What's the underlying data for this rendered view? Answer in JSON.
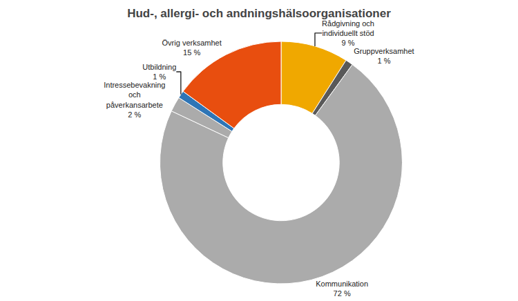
{
  "chart_data": {
    "type": "pie",
    "title": "Hud-, allergi- och andningshälsoorganisationer",
    "categories": [
      "Rådgivning och\nindividuellt stöd",
      "Gruppverksamhet",
      "Kommunikation",
      "Intressebevakning\noch\npåverkansarbete",
      "Utbildning",
      "Övrig verksamhet"
    ],
    "values": [
      9,
      1,
      72,
      2,
      1,
      15
    ],
    "value_labels": [
      "9 %",
      "1 %",
      "72 %",
      "2 %",
      "1 %",
      "15 %"
    ],
    "colors": [
      "#F0A800",
      "#595959",
      "#ABABAB",
      "#ABABAB",
      "#2E75B6",
      "#E84E0F"
    ],
    "data_labels": true
  }
}
